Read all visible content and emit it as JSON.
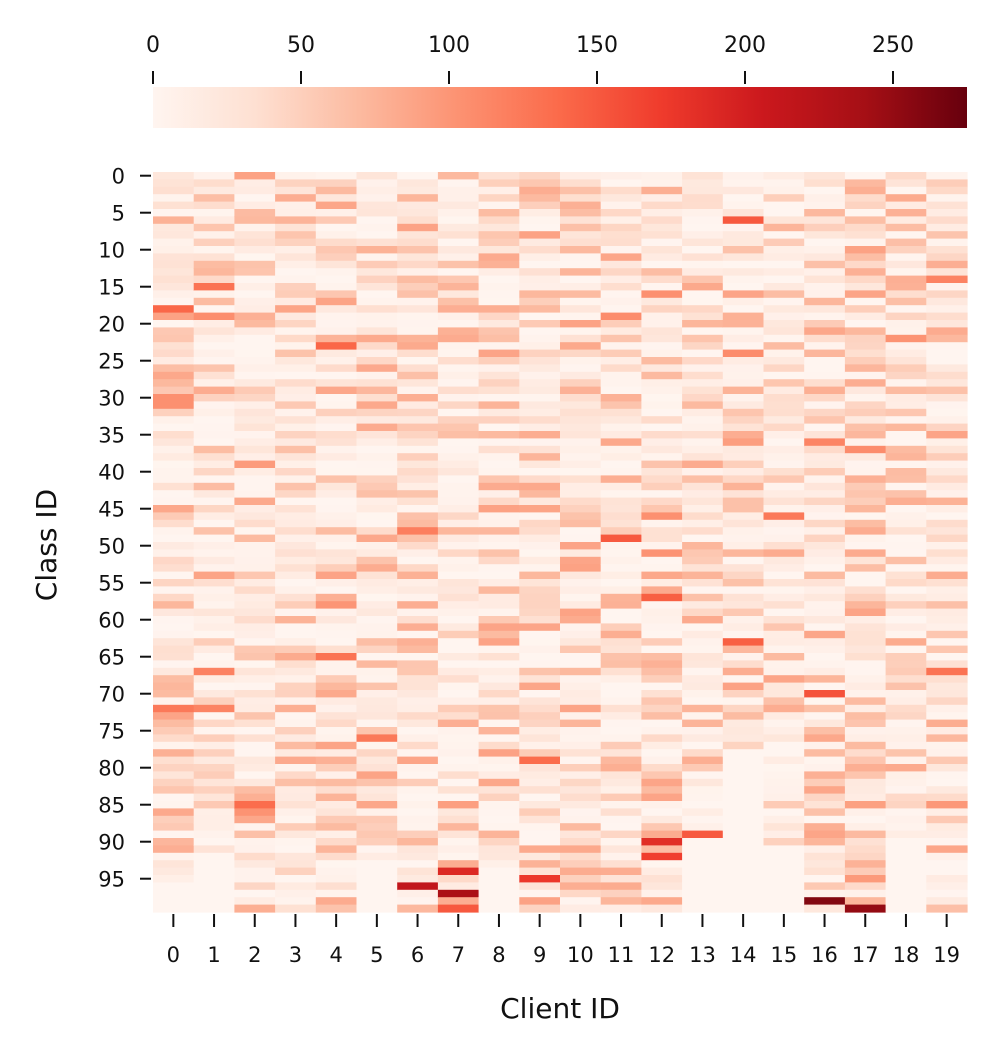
{
  "chart_data": {
    "type": "heatmap",
    "title": "",
    "xlabel": "Client ID",
    "ylabel": "Class ID",
    "colormap": "Reds",
    "colors": [
      "#fff5f0",
      "#fee0d2",
      "#fcbba1",
      "#fc9272",
      "#fb6a4a",
      "#ef3b2c",
      "#cb181d",
      "#a50f15",
      "#67000d"
    ],
    "colorbar": {
      "location": "top",
      "range": [
        0,
        275
      ],
      "ticks": [
        0,
        50,
        100,
        150,
        200,
        250
      ],
      "tick_labels": [
        "0",
        "50",
        "100",
        "150",
        "200",
        "250"
      ]
    },
    "x_categories": [
      "0",
      "1",
      "2",
      "3",
      "4",
      "5",
      "6",
      "7",
      "8",
      "9",
      "10",
      "11",
      "12",
      "13",
      "14",
      "15",
      "16",
      "17",
      "18",
      "19"
    ],
    "y_range": [
      0,
      99
    ],
    "y_ticks": [
      0,
      5,
      10,
      15,
      20,
      25,
      30,
      35,
      40,
      45,
      50,
      55,
      60,
      65,
      70,
      75,
      80,
      85,
      90,
      95
    ],
    "y_tick_labels": [
      "0",
      "5",
      "10",
      "15",
      "20",
      "25",
      "30",
      "35",
      "40",
      "45",
      "50",
      "55",
      "60",
      "65",
      "70",
      "75",
      "80",
      "85",
      "90",
      "95"
    ],
    "notable_cells": [
      {
        "client": 0,
        "class": 18,
        "value": 140
      },
      {
        "client": 0,
        "class": 30,
        "value": 105
      },
      {
        "client": 0,
        "class": 31,
        "value": 105
      },
      {
        "client": 0,
        "class": 72,
        "value": 125
      },
      {
        "client": 1,
        "class": 15,
        "value": 130
      },
      {
        "client": 1,
        "class": 72,
        "value": 115
      },
      {
        "client": 2,
        "class": 85,
        "value": 135
      },
      {
        "client": 4,
        "class": 23,
        "value": 140
      },
      {
        "client": 4,
        "class": 65,
        "value": 130
      },
      {
        "client": 5,
        "class": 76,
        "value": 125
      },
      {
        "client": 6,
        "class": 96,
        "value": 215
      },
      {
        "client": 6,
        "class": 48,
        "value": 120
      },
      {
        "client": 7,
        "class": 94,
        "value": 190
      },
      {
        "client": 7,
        "class": 97,
        "value": 235
      },
      {
        "client": 7,
        "class": 99,
        "value": 150
      },
      {
        "client": 9,
        "class": 79,
        "value": 135
      },
      {
        "client": 9,
        "class": 95,
        "value": 175
      },
      {
        "client": 11,
        "class": 49,
        "value": 150
      },
      {
        "client": 12,
        "class": 57,
        "value": 145
      },
      {
        "client": 12,
        "class": 90,
        "value": 185
      },
      {
        "client": 12,
        "class": 92,
        "value": 170
      },
      {
        "client": 13,
        "class": 89,
        "value": 150
      },
      {
        "client": 14,
        "class": 6,
        "value": 150
      },
      {
        "client": 14,
        "class": 63,
        "value": 145
      },
      {
        "client": 15,
        "class": 46,
        "value": 125
      },
      {
        "client": 16,
        "class": 70,
        "value": 155
      },
      {
        "client": 16,
        "class": 98,
        "value": 260
      },
      {
        "client": 17,
        "class": 99,
        "value": 250
      },
      {
        "client": 19,
        "class": 67,
        "value": 130
      }
    ],
    "empty_cells": {
      "14": [
        78,
        99
      ],
      "13": [
        90,
        99
      ],
      "15": [
        91,
        99
      ],
      "18": [
        91,
        99
      ],
      "5": [
        93,
        99
      ],
      "8": [
        94,
        99
      ],
      "1": [
        92,
        99
      ],
      "0": [
        96,
        99
      ]
    },
    "background_value_range": [
      0,
      90
    ]
  }
}
